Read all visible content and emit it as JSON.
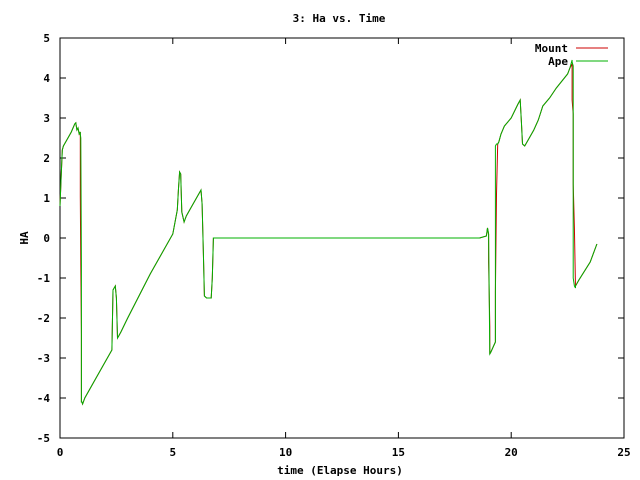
{
  "chart_data": {
    "type": "line",
    "title": "3: Ha vs. Time",
    "xlabel": "time (Elapse Hours)",
    "ylabel": "HA",
    "xlim": [
      0,
      25
    ],
    "ylim": [
      -5,
      5
    ],
    "xticks": [
      0,
      5,
      10,
      15,
      20,
      25
    ],
    "yticks": [
      -5,
      -4,
      -3,
      -2,
      -1,
      0,
      1,
      2,
      3,
      4,
      5
    ],
    "grid": false,
    "legend_position": "top-right",
    "series": [
      {
        "name": "Mount",
        "color": "#cc0000",
        "x": [
          0.0,
          0.05,
          0.1,
          0.15,
          0.3,
          0.5,
          0.65,
          0.7,
          0.75,
          0.8,
          0.85,
          0.9,
          0.9,
          0.92,
          0.95,
          0.95,
          0.97,
          1.0,
          1.1,
          1.5,
          2.0,
          2.3,
          2.35,
          2.45,
          2.5,
          2.55,
          2.6,
          2.65,
          2.7,
          3.0,
          4.0,
          5.0,
          5.2,
          5.25,
          5.3,
          5.35,
          5.4,
          5.5,
          5.6,
          5.8,
          6.1,
          6.25,
          6.3,
          6.35,
          6.4,
          6.5,
          6.6,
          6.7,
          6.75,
          6.8,
          6.85,
          7.0,
          10.0,
          15.0,
          18.6,
          18.9,
          18.95,
          19.0,
          19.0,
          19.05,
          19.05,
          19.1,
          19.3,
          19.3,
          19.35,
          19.4,
          19.45,
          19.5,
          19.55,
          19.7,
          20.0,
          20.3,
          20.4,
          20.45,
          20.5,
          20.6,
          20.7,
          21.0,
          21.2,
          21.4,
          21.7,
          22.0,
          22.5,
          22.6,
          22.7,
          22.7,
          22.75,
          22.75,
          22.8,
          22.85,
          22.85,
          23.0,
          23.5,
          23.8
        ],
        "y": [
          0.8,
          1.5,
          2.2,
          2.3,
          2.45,
          2.65,
          2.85,
          2.88,
          2.7,
          2.75,
          2.6,
          2.65,
          1.05,
          -0.7,
          -2.4,
          -4.1,
          -4.1,
          -4.15,
          -4.0,
          -3.6,
          -3.1,
          -2.8,
          -1.3,
          -1.2,
          -1.5,
          -2.5,
          -2.45,
          -2.4,
          -2.35,
          -2.0,
          -0.9,
          0.1,
          0.7,
          1.2,
          1.65,
          1.6,
          0.65,
          0.4,
          0.55,
          0.75,
          1.05,
          1.2,
          0.85,
          -0.3,
          -1.45,
          -1.5,
          -1.5,
          -1.5,
          -1.0,
          0.0,
          0.0,
          0.0,
          0.0,
          0.0,
          0.0,
          0.05,
          0.25,
          0.1,
          -0.6,
          -2.2,
          -2.9,
          -2.85,
          -2.6,
          -1.35,
          1.1,
          2.35,
          2.4,
          2.5,
          2.6,
          2.8,
          3.0,
          3.35,
          3.45,
          2.9,
          2.35,
          2.3,
          2.4,
          2.7,
          2.95,
          3.3,
          3.5,
          3.75,
          4.1,
          4.25,
          4.35,
          3.45,
          3.1,
          1.35,
          0.25,
          -1.25,
          -1.2,
          -1.05,
          -0.6,
          -0.15
        ]
      },
      {
        "name": "Ape",
        "color": "#00b000",
        "x": [
          0.0,
          0.05,
          0.1,
          0.15,
          0.3,
          0.5,
          0.65,
          0.7,
          0.75,
          0.8,
          0.85,
          0.9,
          0.9,
          0.92,
          0.95,
          0.95,
          0.97,
          1.0,
          1.1,
          1.5,
          2.0,
          2.3,
          2.35,
          2.45,
          2.5,
          2.55,
          2.6,
          2.65,
          2.7,
          3.0,
          4.0,
          5.0,
          5.2,
          5.25,
          5.3,
          5.35,
          5.4,
          5.5,
          5.6,
          5.8,
          6.1,
          6.25,
          6.3,
          6.35,
          6.4,
          6.5,
          6.6,
          6.7,
          6.75,
          6.8,
          6.85,
          7.0,
          10.0,
          15.0,
          18.6,
          18.9,
          18.95,
          19.0,
          19.0,
          19.05,
          19.05,
          19.1,
          19.3,
          19.3,
          19.35,
          19.4,
          19.45,
          19.5,
          19.55,
          19.7,
          20.0,
          20.3,
          20.4,
          20.45,
          20.5,
          20.6,
          20.7,
          21.0,
          21.2,
          21.4,
          21.7,
          22.0,
          22.5,
          22.6,
          22.7,
          22.7,
          22.75,
          22.75,
          22.8,
          22.85,
          22.85,
          23.0,
          23.5,
          23.8
        ],
        "y": [
          0.8,
          1.5,
          2.2,
          2.3,
          2.45,
          2.65,
          2.85,
          2.88,
          2.7,
          2.75,
          2.6,
          2.65,
          2.6,
          2.5,
          -0.7,
          -4.1,
          -4.1,
          -4.15,
          -4.0,
          -3.6,
          -3.1,
          -2.8,
          -1.3,
          -1.2,
          -1.5,
          -2.5,
          -2.45,
          -2.4,
          -2.35,
          -2.0,
          -0.9,
          0.1,
          0.7,
          1.2,
          1.65,
          1.6,
          0.65,
          0.4,
          0.55,
          0.75,
          1.05,
          1.2,
          0.85,
          -0.3,
          -1.45,
          -1.5,
          -1.5,
          -1.5,
          -1.0,
          0.0,
          0.0,
          0.0,
          0.0,
          0.0,
          0.0,
          0.05,
          0.25,
          0.1,
          0.1,
          -2.9,
          -2.9,
          -2.85,
          -2.6,
          2.3,
          2.35,
          2.35,
          2.4,
          2.5,
          2.6,
          2.8,
          3.0,
          3.35,
          3.45,
          2.9,
          2.35,
          2.3,
          2.4,
          2.7,
          2.95,
          3.3,
          3.5,
          3.75,
          4.1,
          4.25,
          4.45,
          4.4,
          4.3,
          -1.0,
          -1.2,
          -1.25,
          -1.2,
          -1.05,
          -0.6,
          -0.15
        ]
      }
    ]
  }
}
